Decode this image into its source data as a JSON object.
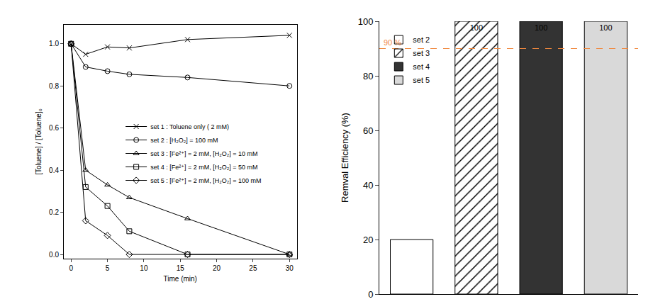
{
  "chart_data": [
    {
      "type": "line",
      "x_label": "Time (min)",
      "y_label": "[Toluene] / [Toluene]₀",
      "xlim": [
        -1,
        31
      ],
      "xticks": [
        0,
        5,
        10,
        15,
        20,
        25,
        30
      ],
      "ylim": [
        -0.02,
        1.09
      ],
      "yticks": [
        {
          "value": 0,
          "label": "0.0"
        },
        0.2,
        0.4,
        0.6,
        0.8,
        {
          "value": 1,
          "label": "1.0"
        }
      ],
      "grid": false,
      "legend": "center",
      "series": [
        {
          "name": "set 1 : Toluene only ( 2 mM)",
          "color": "#000000",
          "marker": "x-thin-open",
          "x": [
            0,
            2,
            5,
            8,
            16,
            30
          ],
          "values": [
            1.0,
            0.95,
            0.985,
            0.98,
            1.02,
            1.04
          ]
        },
        {
          "name": "set 2 : [H₂O₂] = 100 mM",
          "color": "#000000",
          "marker": "circle-open",
          "x": [
            0,
            2,
            5,
            8,
            16,
            30
          ],
          "values": [
            1.0,
            0.89,
            0.87,
            0.855,
            0.84,
            0.8
          ]
        },
        {
          "name": "set 3 : [Fe²⁺] = 2 mM, [H₂O₂] = 10 mM",
          "color": "#000000",
          "marker": "triangle-up-open",
          "x": [
            0,
            2,
            5,
            8,
            16,
            30
          ],
          "values": [
            1.0,
            0.4,
            0.33,
            0.27,
            0.17,
            0.0
          ]
        },
        {
          "name": "set 4 : [Fe²⁺] = 2 mM, [H₂O₂] = 50 mM",
          "color": "#000000",
          "marker": "square-open",
          "x": [
            0,
            2,
            5,
            8,
            16,
            30
          ],
          "values": [
            1.0,
            0.32,
            0.23,
            0.11,
            0.0,
            0.0
          ]
        },
        {
          "name": "set 5 : [Fe²⁺] = 2 mM, [H₂O₂] = 100 mM",
          "color": "#000000",
          "marker": "diamond-open",
          "x": [
            0,
            2,
            5,
            8,
            16,
            30
          ],
          "values": [
            1.0,
            0.16,
            0.09,
            0.0,
            0.0,
            0.0
          ]
        }
      ]
    },
    {
      "type": "bar",
      "y_label": "Remval Efficiency (%)",
      "categories": [
        "set 2",
        "set 3",
        "set 4",
        "set 5"
      ],
      "values": [
        20,
        100,
        100,
        100
      ],
      "value_labels": [
        null,
        "100",
        "100",
        "100"
      ],
      "colors": [
        "#ffffff",
        "#ffffff",
        "#333333",
        "#d9d9d9"
      ],
      "ylim": [
        0,
        100
      ],
      "yticks": [
        0,
        20,
        40,
        60,
        80,
        100
      ],
      "grid": false,
      "tick_labels": "y",
      "legend": "upper left",
      "annotations": [
        {
          "text": "90 %",
          "y": 90,
          "color": "#f0883e"
        }
      ]
    }
  ]
}
